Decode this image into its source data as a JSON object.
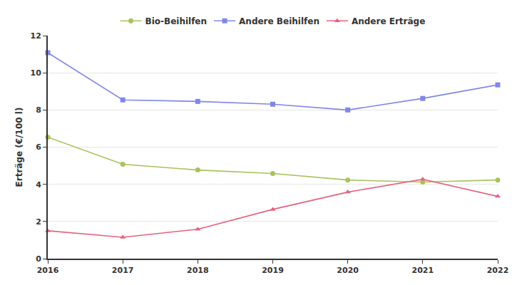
{
  "chart_data": {
    "type": "line",
    "y_label": "Erträge (€/100 l)",
    "x": [
      2016,
      2017,
      2018,
      2019,
      2020,
      2021,
      2022
    ],
    "series": [
      {
        "name": "Bio-Beihilfen",
        "color": "#a8c25c",
        "marker": "circle",
        "values": [
          6.54,
          5.08,
          4.77,
          4.58,
          4.23,
          4.12,
          4.23
        ]
      },
      {
        "name": "Andere Beihilfen",
        "color": "#8087e6",
        "marker": "square",
        "values": [
          11.08,
          8.54,
          8.46,
          8.31,
          8.0,
          8.62,
          9.35
        ]
      },
      {
        "name": "Andere Erträge",
        "color": "#e6617f",
        "marker": "triangle-up",
        "values": [
          1.5,
          1.15,
          1.58,
          2.65,
          3.58,
          4.27,
          3.35
        ]
      }
    ],
    "xlim": [
      2016,
      2022
    ],
    "xticks": [
      2016,
      2017,
      2018,
      2019,
      2020,
      2021,
      2022
    ],
    "ylim": [
      0,
      12
    ],
    "yticks": [
      0,
      2,
      4,
      6,
      8,
      10,
      12
    ],
    "grid": true,
    "legend": "top"
  }
}
